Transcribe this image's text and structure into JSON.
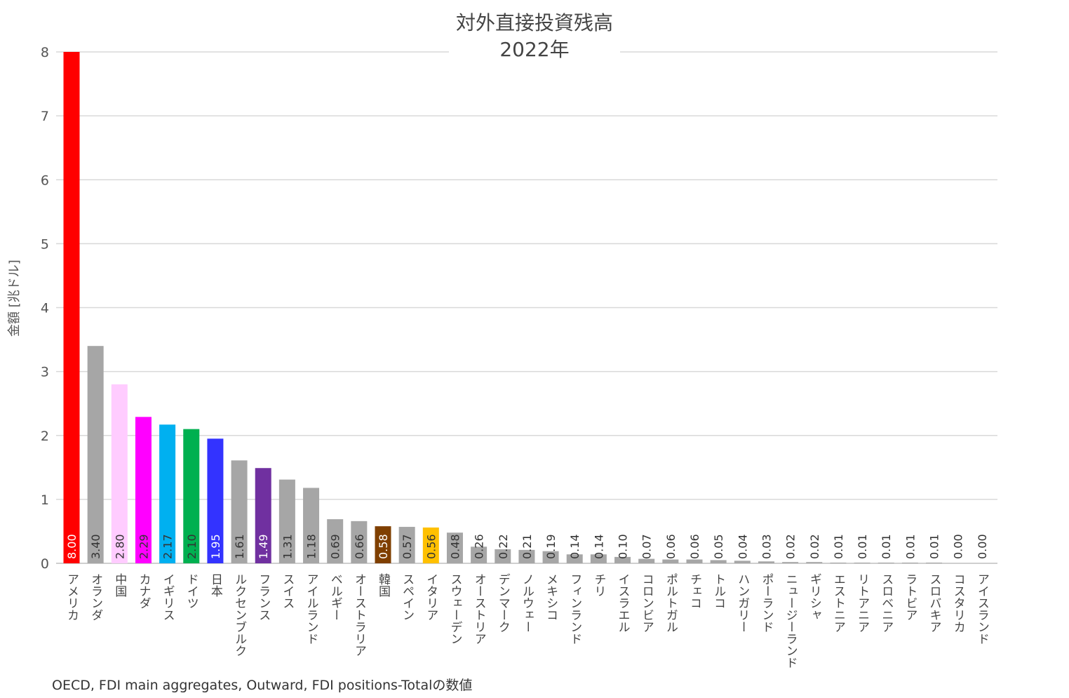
{
  "chart_data": {
    "type": "bar",
    "title": "対外直接投資残高",
    "subtitle": "2022年",
    "ylabel": "金額 [兆ドル]",
    "xlabel": "",
    "ylim": [
      0,
      8
    ],
    "yticks": [
      "0",
      "1",
      "2",
      "3",
      "4",
      "5",
      "6",
      "7",
      "8"
    ],
    "grid": true,
    "source": "OECD, FDI main aggregates, Outward, FDI positions-Totalの数値",
    "categories": [
      "アメリカ",
      "オランダ",
      "中国",
      "カナダ",
      "イギリス",
      "ドイツ",
      "日本",
      "ルクセンブルク",
      "フランス",
      "スイス",
      "アイルランド",
      "ベルギー",
      "オーストラリア",
      "韓国",
      "スペイン",
      "イタリア",
      "スウェーデン",
      "オーストリア",
      "デンマーク",
      "ノルウェー",
      "メキシコ",
      "フィンランド",
      "チリ",
      "イスラエル",
      "コロンビア",
      "ポルトガル",
      "チェコ",
      "トルコ",
      "ハンガリー",
      "ポーランド",
      "ニュージーランド",
      "ギリシャ",
      "エストニア",
      "リトアニア",
      "スロベニア",
      "ラトビア",
      "スロバキア",
      "コスタリカ",
      "アイスランド"
    ],
    "values": [
      8.0,
      3.4,
      2.8,
      2.29,
      2.17,
      2.1,
      1.95,
      1.61,
      1.49,
      1.31,
      1.18,
      0.69,
      0.66,
      0.58,
      0.57,
      0.56,
      0.48,
      0.26,
      0.22,
      0.21,
      0.19,
      0.14,
      0.14,
      0.1,
      0.07,
      0.06,
      0.06,
      0.05,
      0.04,
      0.03,
      0.02,
      0.02,
      0.01,
      0.01,
      0.01,
      0.01,
      0.01,
      0.0,
      0.0
    ],
    "value_labels": [
      "8.00",
      "3.40",
      "2.80",
      "2.29",
      "2.17",
      "2.10",
      "1.95",
      "1.61",
      "1.49",
      "1.31",
      "1.18",
      "0.69",
      "0.66",
      "0.58",
      "0.57",
      "0.56",
      "0.48",
      "0.26",
      "0.22",
      "0.21",
      "0.19",
      "0.14",
      "0.14",
      "0.10",
      "0.07",
      "0.06",
      "0.06",
      "0.05",
      "0.04",
      "0.03",
      "0.02",
      "0.02",
      "0.01",
      "0.01",
      "0.01",
      "0.01",
      "0.01",
      "0.00",
      "0.00"
    ],
    "colors": [
      "#ff0000",
      "#a6a6a6",
      "#ffccff",
      "#ff00ff",
      "#00b0f0",
      "#00b050",
      "#3333ff",
      "#a6a6a6",
      "#7030a0",
      "#a6a6a6",
      "#a6a6a6",
      "#a6a6a6",
      "#a6a6a6",
      "#7f3f00",
      "#a6a6a6",
      "#ffc000",
      "#a6a6a6",
      "#a6a6a6",
      "#a6a6a6",
      "#a6a6a6",
      "#a6a6a6",
      "#a6a6a6",
      "#a6a6a6",
      "#a6a6a6",
      "#a6a6a6",
      "#a6a6a6",
      "#a6a6a6",
      "#a6a6a6",
      "#a6a6a6",
      "#a6a6a6",
      "#a6a6a6",
      "#a6a6a6",
      "#a6a6a6",
      "#a6a6a6",
      "#a6a6a6",
      "#a6a6a6",
      "#a6a6a6",
      "#a6a6a6",
      "#a6a6a6"
    ],
    "label_colors": [
      "#ffffff",
      "#333333",
      "#333333",
      "#333333",
      "#333333",
      "#333333",
      "#ffffff",
      "#333333",
      "#ffffff",
      "#333333",
      "#333333",
      "#333333",
      "#333333",
      "#ffffff",
      "#333333",
      "#333333",
      "#333333",
      "#333333",
      "#333333",
      "#333333",
      "#333333",
      "#333333",
      "#333333",
      "#333333",
      "#333333",
      "#333333",
      "#333333",
      "#333333",
      "#333333",
      "#333333",
      "#333333",
      "#333333",
      "#333333",
      "#333333",
      "#333333",
      "#333333",
      "#333333",
      "#333333",
      "#333333"
    ]
  }
}
